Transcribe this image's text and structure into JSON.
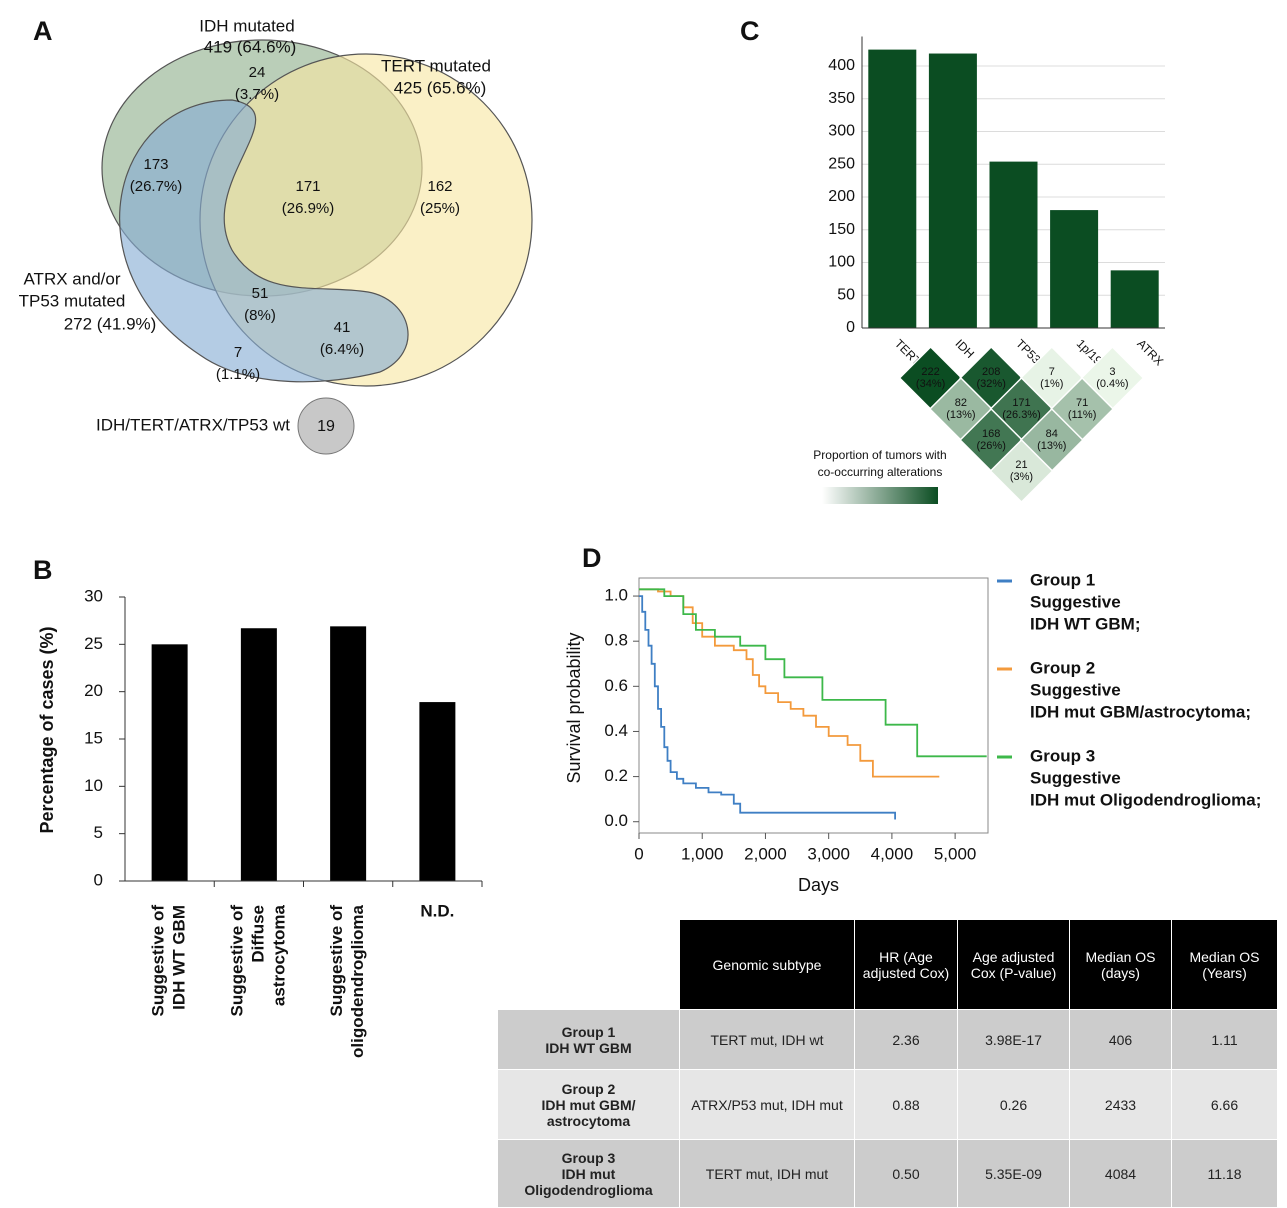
{
  "chart_data": [
    {
      "panel": "A",
      "type": "venn",
      "sets": [
        {
          "name": [
            "IDH mutated"
          ],
          "label": "419 (64.6%)",
          "color": "#8fb08c"
        },
        {
          "name": [
            "TERT mutated"
          ],
          "label": "425 (65.6%)",
          "color": "#f7e6a3"
        },
        {
          "name": [
            "ATRX and/or",
            "TP53 mutated"
          ],
          "label": "272 (41.9%)",
          "color": "#86acd4"
        }
      ],
      "regions": [
        {
          "value": 24,
          "label": "(3.7%)"
        },
        {
          "value": 173,
          "label": "(26.7%)"
        },
        {
          "value": 171,
          "label": "(26.9%)"
        },
        {
          "value": 162,
          "label": "(25%)"
        },
        {
          "value": 51,
          "label": "(8%)"
        },
        {
          "value": 41,
          "label": "(6.4%)"
        },
        {
          "value": 7,
          "label": "(1.1%)"
        }
      ],
      "wildtype": {
        "name": "IDH/TERT/ATRX/TP53 wt",
        "value": 19
      }
    },
    {
      "panel": "B",
      "type": "bar",
      "categories": [
        [
          "Suggestive of",
          "IDH WT GBM"
        ],
        [
          "Suggestive of",
          "Diffuse",
          "astrocytoma"
        ],
        [
          "Suggestive of",
          "oligodendroglioma"
        ],
        [
          "N.D."
        ]
      ],
      "values": [
        25,
        26.7,
        26.9,
        18.9
      ],
      "color": "#000000",
      "ylabel": "Percentage of cases (%)",
      "ylim": [
        0,
        30
      ],
      "yticks": [
        0,
        5,
        10,
        15,
        20,
        25,
        30
      ],
      "grid": false
    },
    {
      "panel": "C",
      "type": "bar",
      "categories": [
        "TERT",
        "IDH",
        "TP53",
        "1p/19q",
        "ATRX"
      ],
      "values": [
        425,
        419,
        254,
        180,
        88
      ],
      "color": "#0b4d22",
      "ylim": [
        0,
        445
      ],
      "yticks": [
        0,
        50,
        100,
        150,
        200,
        250,
        300,
        350,
        400
      ],
      "grid": true,
      "matrix": [
        [
          {
            "value": 222,
            "label": "(34%)"
          },
          {
            "value": 208,
            "label": "(32%)"
          },
          {
            "value": 7,
            "label": "(1%)"
          },
          {
            "value": 3,
            "label": "(0.4%)"
          }
        ],
        [
          {
            "value": 82,
            "label": "(13%)"
          },
          {
            "value": 171,
            "label": "(26.3%)"
          },
          {
            "value": 71,
            "label": "(11%)"
          }
        ],
        [
          {
            "value": 168,
            "label": "(26%)"
          },
          {
            "value": 84,
            "label": "(13%)"
          }
        ],
        [
          {
            "value": 21,
            "label": "(3%)"
          }
        ]
      ],
      "matrix_legend": [
        "Proportion of tumors with",
        "co-occurring alterations"
      ]
    },
    {
      "panel": "D",
      "type": "line",
      "xlabel": "Days",
      "ylabel": "Survival probability",
      "xlim": [
        0,
        5520
      ],
      "ylim": [
        -0.05,
        1.08
      ],
      "xticks": [
        0,
        {
          "value": 1000,
          "label": "1,000"
        },
        {
          "value": 2000,
          "label": "2,000"
        },
        {
          "value": 3000,
          "label": "3,000"
        },
        {
          "value": 4000,
          "label": "4,000"
        },
        {
          "value": 5000,
          "label": "5,000"
        }
      ],
      "yticks": [
        {
          "value": 0,
          "label": "0.0"
        },
        0.2,
        0.4,
        0.6,
        0.8,
        {
          "value": 1,
          "label": "1.0"
        }
      ],
      "series": [
        {
          "name": "Group 1",
          "description": [
            "Suggestive",
            "IDH WT GBM;"
          ],
          "color": "#3f7fc4",
          "x": [
            0,
            50,
            50,
            100,
            100,
            150,
            150,
            200,
            200,
            250,
            250,
            300,
            300,
            350,
            350,
            400,
            400,
            450,
            450,
            500,
            500,
            600,
            600,
            700,
            700,
            900,
            900,
            1100,
            1100,
            1300,
            1300,
            1500,
            1500,
            1600,
            1600,
            4050,
            4050
          ],
          "y": [
            1.0,
            1.0,
            0.93,
            0.93,
            0.85,
            0.85,
            0.78,
            0.78,
            0.7,
            0.7,
            0.6,
            0.6,
            0.5,
            0.5,
            0.42,
            0.42,
            0.33,
            0.33,
            0.27,
            0.27,
            0.22,
            0.22,
            0.19,
            0.19,
            0.17,
            0.17,
            0.15,
            0.15,
            0.13,
            0.13,
            0.12,
            0.12,
            0.08,
            0.08,
            0.04,
            0.04,
            0.01
          ]
        },
        {
          "name": "Group 2",
          "description": [
            "Suggestive",
            "IDH mut GBM/astrocytoma;"
          ],
          "color": "#f39a3c",
          "x": [
            0,
            300,
            300,
            500,
            500,
            700,
            700,
            850,
            850,
            1000,
            1000,
            1200,
            1200,
            1500,
            1500,
            1700,
            1700,
            1800,
            1800,
            1900,
            1900,
            2000,
            2000,
            2200,
            2200,
            2400,
            2400,
            2600,
            2600,
            2800,
            2800,
            3000,
            3000,
            3300,
            3300,
            3500,
            3500,
            3700,
            3700,
            4750
          ],
          "y": [
            1.03,
            1.03,
            1.02,
            1.02,
            1.0,
            1.0,
            0.95,
            0.95,
            0.88,
            0.88,
            0.82,
            0.82,
            0.78,
            0.78,
            0.76,
            0.76,
            0.72,
            0.72,
            0.65,
            0.65,
            0.6,
            0.6,
            0.57,
            0.57,
            0.53,
            0.53,
            0.5,
            0.5,
            0.47,
            0.47,
            0.42,
            0.42,
            0.38,
            0.38,
            0.34,
            0.34,
            0.27,
            0.27,
            0.2,
            0.2
          ]
        },
        {
          "name": "Group 3",
          "description": [
            "Suggestive",
            "IDH mut Oligodendroglioma;"
          ],
          "color": "#3db84a",
          "x": [
            0,
            400,
            400,
            700,
            700,
            900,
            900,
            1200,
            1200,
            1600,
            1600,
            2000,
            2000,
            2300,
            2300,
            2900,
            2900,
            3900,
            3900,
            4400,
            4400,
            5500
          ],
          "y": [
            1.03,
            1.03,
            1.0,
            1.0,
            0.92,
            0.92,
            0.85,
            0.85,
            0.82,
            0.82,
            0.78,
            0.78,
            0.72,
            0.72,
            0.64,
            0.64,
            0.54,
            0.54,
            0.43,
            0.43,
            0.29,
            0.29
          ]
        }
      ]
    }
  ],
  "table": {
    "header": [
      "Genomic subtype",
      "HR (Age adjusted Cox)",
      "Age adjusted Cox (P-value)",
      "Median OS (days)",
      "Median OS (Years)"
    ],
    "rows": [
      {
        "group": [
          "Group 1",
          "IDH WT GBM"
        ],
        "cells": [
          "TERT mut, IDH wt",
          "2.36",
          "3.98E-17",
          "406",
          "1.11"
        ]
      },
      {
        "group": [
          "Group 2",
          "IDH mut GBM/",
          "astrocytoma"
        ],
        "cells": [
          "ATRX/P53 mut, IDH mut",
          "0.88",
          "0.26",
          "2433",
          "6.66"
        ]
      },
      {
        "group": [
          "Group 3",
          "IDH mut",
          "Oligodendroglioma"
        ],
        "cells": [
          "TERT mut, IDH mut",
          "0.50",
          "5.35E-09",
          "4084",
          "11.18"
        ]
      }
    ]
  }
}
